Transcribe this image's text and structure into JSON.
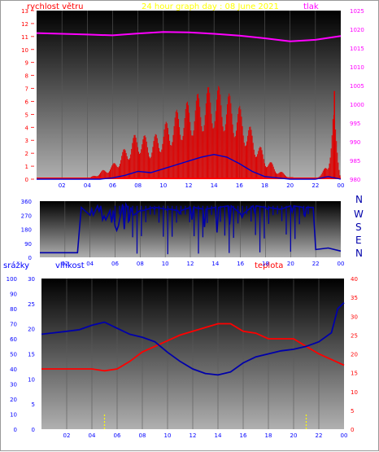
{
  "header": {
    "title": "24 hour graph day : 08 June 2021",
    "left_label": "rychlost větru",
    "right_label": "tlak"
  },
  "compass": [
    "N",
    "W",
    "S",
    "E",
    "N"
  ],
  "bottom_labels": {
    "srazky": "srážky",
    "vlhkost": "vlhkost",
    "teplota": "teplota"
  },
  "colors": {
    "wind": "#ff0000",
    "gust_bars": "#dd0000",
    "pressure": "#ff00ff",
    "direction": "#0000aa",
    "humidity": "#0000aa",
    "temperature": "#ff0000",
    "rain": "#ffff00",
    "axis_blue": "#0000ff",
    "axis_red": "#ff0000",
    "axis_magenta": "#ff00ff",
    "plot_bg_top": "#000000",
    "plot_bg_bottom": "#b0b0b0"
  },
  "chart_data": [
    {
      "type": "line",
      "title": "24 hour graph day : 08 June 2021",
      "x_ticks": [
        "02",
        "04",
        "06",
        "08",
        "10",
        "12",
        "14",
        "16",
        "18",
        "20",
        "22",
        "00"
      ],
      "xlim_hours": [
        0,
        24
      ],
      "left_axis": {
        "label": "rychlost větru",
        "ticks": [
          0,
          1,
          2,
          3,
          4,
          5,
          6,
          7,
          8,
          9,
          10,
          11,
          12,
          13
        ],
        "ylim": [
          0,
          13
        ]
      },
      "right_axis": {
        "label": "tlak",
        "ticks": [
          980,
          985,
          990,
          995,
          1000,
          1005,
          1010,
          1015,
          1020,
          1025
        ],
        "ylim": [
          980,
          1025
        ]
      },
      "series": [
        {
          "axis": "right",
          "x": [
            0,
            2,
            4,
            6,
            8,
            10,
            12,
            14,
            16,
            18,
            20,
            22,
            24
          ],
          "y": [
            1019,
            1018.8,
            1018.6,
            1018.4,
            1018.9,
            1019.3,
            1019.2,
            1018.8,
            1018.3,
            1017.6,
            1016.8,
            1017.2,
            1018.2
          ]
        },
        {
          "axis": "left",
          "x": [
            0,
            1,
            2,
            3,
            4,
            5,
            6,
            7,
            8,
            9,
            10,
            11,
            12,
            13,
            14,
            15,
            16,
            17,
            18,
            19,
            20,
            21,
            22,
            23,
            23.4,
            24
          ],
          "y": [
            0,
            0,
            0,
            0,
            0,
            0.3,
            0.6,
            1.3,
            2.0,
            1.6,
            2.2,
            2.8,
            3.2,
            3.6,
            3.9,
            3.6,
            3.0,
            2.0,
            1.0,
            0.4,
            0.1,
            0,
            0,
            0.6,
            3.0,
            0
          ]
        },
        {
          "axis": "left",
          "x": [
            0,
            1,
            2,
            3,
            4,
            5,
            6,
            7,
            8,
            9,
            10,
            11,
            12,
            13,
            14,
            15,
            16,
            17,
            18,
            19,
            20,
            21,
            22,
            23,
            24
          ],
          "y": [
            0,
            0,
            0,
            0,
            0,
            0,
            0.1,
            0.3,
            0.6,
            0.5,
            0.8,
            1.1,
            1.4,
            1.7,
            1.9,
            1.7,
            1.2,
            0.6,
            0.2,
            0.1,
            0,
            0,
            0,
            0.2,
            0
          ]
        }
      ],
      "peak_gust": {
        "x": 23.5,
        "y": 6.8
      }
    },
    {
      "type": "line",
      "x_ticks": [
        "02",
        "04",
        "06",
        "08",
        "10",
        "12",
        "14",
        "16",
        "18",
        "20",
        "22",
        "00"
      ],
      "xlim_hours": [
        0,
        24
      ],
      "left_axis": {
        "ticks": [
          0,
          90,
          180,
          270,
          360
        ],
        "ylim": [
          0,
          360
        ]
      },
      "right_labels": [
        "N",
        "W",
        "S",
        "E",
        "N"
      ],
      "series": [
        {
          "x": [
            0,
            1,
            2,
            3,
            3.3,
            4,
            4.6,
            5,
            5.6,
            6,
            6.6,
            7,
            7.4,
            8,
            9,
            10,
            11,
            12,
            13,
            14,
            15,
            16,
            17,
            18,
            19,
            20,
            21,
            21.8,
            22,
            23,
            24
          ],
          "y": [
            30,
            30,
            30,
            30,
            320,
            270,
            330,
            240,
            300,
            200,
            340,
            320,
            280,
            300,
            320,
            310,
            300,
            320,
            310,
            320,
            330,
            280,
            330,
            320,
            310,
            330,
            320,
            320,
            50,
            60,
            40
          ]
        }
      ]
    },
    {
      "type": "line",
      "x_ticks": [
        "02",
        "04",
        "06",
        "08",
        "10",
        "12",
        "14",
        "16",
        "18",
        "20",
        "22",
        "00"
      ],
      "xlim_hours": [
        0,
        24
      ],
      "axis_rain": {
        "label": "srážky",
        "ticks": [
          0,
          10,
          20,
          30,
          40,
          50,
          60,
          70,
          80,
          90,
          100
        ],
        "ylim": [
          0,
          100
        ]
      },
      "axis_humidity": {
        "label": "vlhkost",
        "ticks": [
          0,
          5,
          10,
          15,
          20,
          25,
          30
        ],
        "ylim": [
          0,
          30
        ]
      },
      "axis_temperature": {
        "label": "teplota",
        "ticks": [
          0,
          5,
          10,
          15,
          20,
          25,
          30,
          35,
          40
        ],
        "ylim": [
          0,
          40
        ]
      },
      "series": [
        {
          "axis": "humidity",
          "name": "vlhkost",
          "x": [
            0,
            1,
            2,
            3,
            4,
            5,
            6,
            7,
            8,
            9,
            10,
            11,
            12,
            13,
            14,
            15,
            16,
            17,
            18,
            19,
            20,
            21,
            22,
            23,
            23.5,
            24
          ],
          "y": [
            63,
            64,
            65,
            66,
            69,
            71,
            67,
            63,
            61,
            58,
            51,
            45,
            40,
            37,
            36,
            38,
            44,
            48,
            50,
            52,
            53,
            55,
            58,
            64,
            80,
            84
          ]
        },
        {
          "axis": "temperature",
          "name": "teplota",
          "x": [
            0,
            1,
            2,
            3,
            4,
            5,
            6,
            7,
            8,
            9,
            10,
            11,
            12,
            13,
            14,
            15,
            16,
            17,
            18,
            19,
            20,
            21,
            22,
            23,
            24
          ],
          "y": [
            16,
            16,
            16,
            16,
            16,
            15.5,
            16,
            18,
            20.5,
            22,
            23.5,
            25,
            26,
            27,
            28,
            28,
            26,
            25.5,
            24,
            24,
            24,
            22,
            20,
            18.5,
            17
          ]
        },
        {
          "axis": "rain",
          "name": "srážky",
          "x": [
            0,
            4.9,
            5.0,
            20.9,
            21.0,
            24
          ],
          "y": [
            0,
            0,
            10,
            0,
            10,
            0
          ]
        }
      ]
    }
  ]
}
